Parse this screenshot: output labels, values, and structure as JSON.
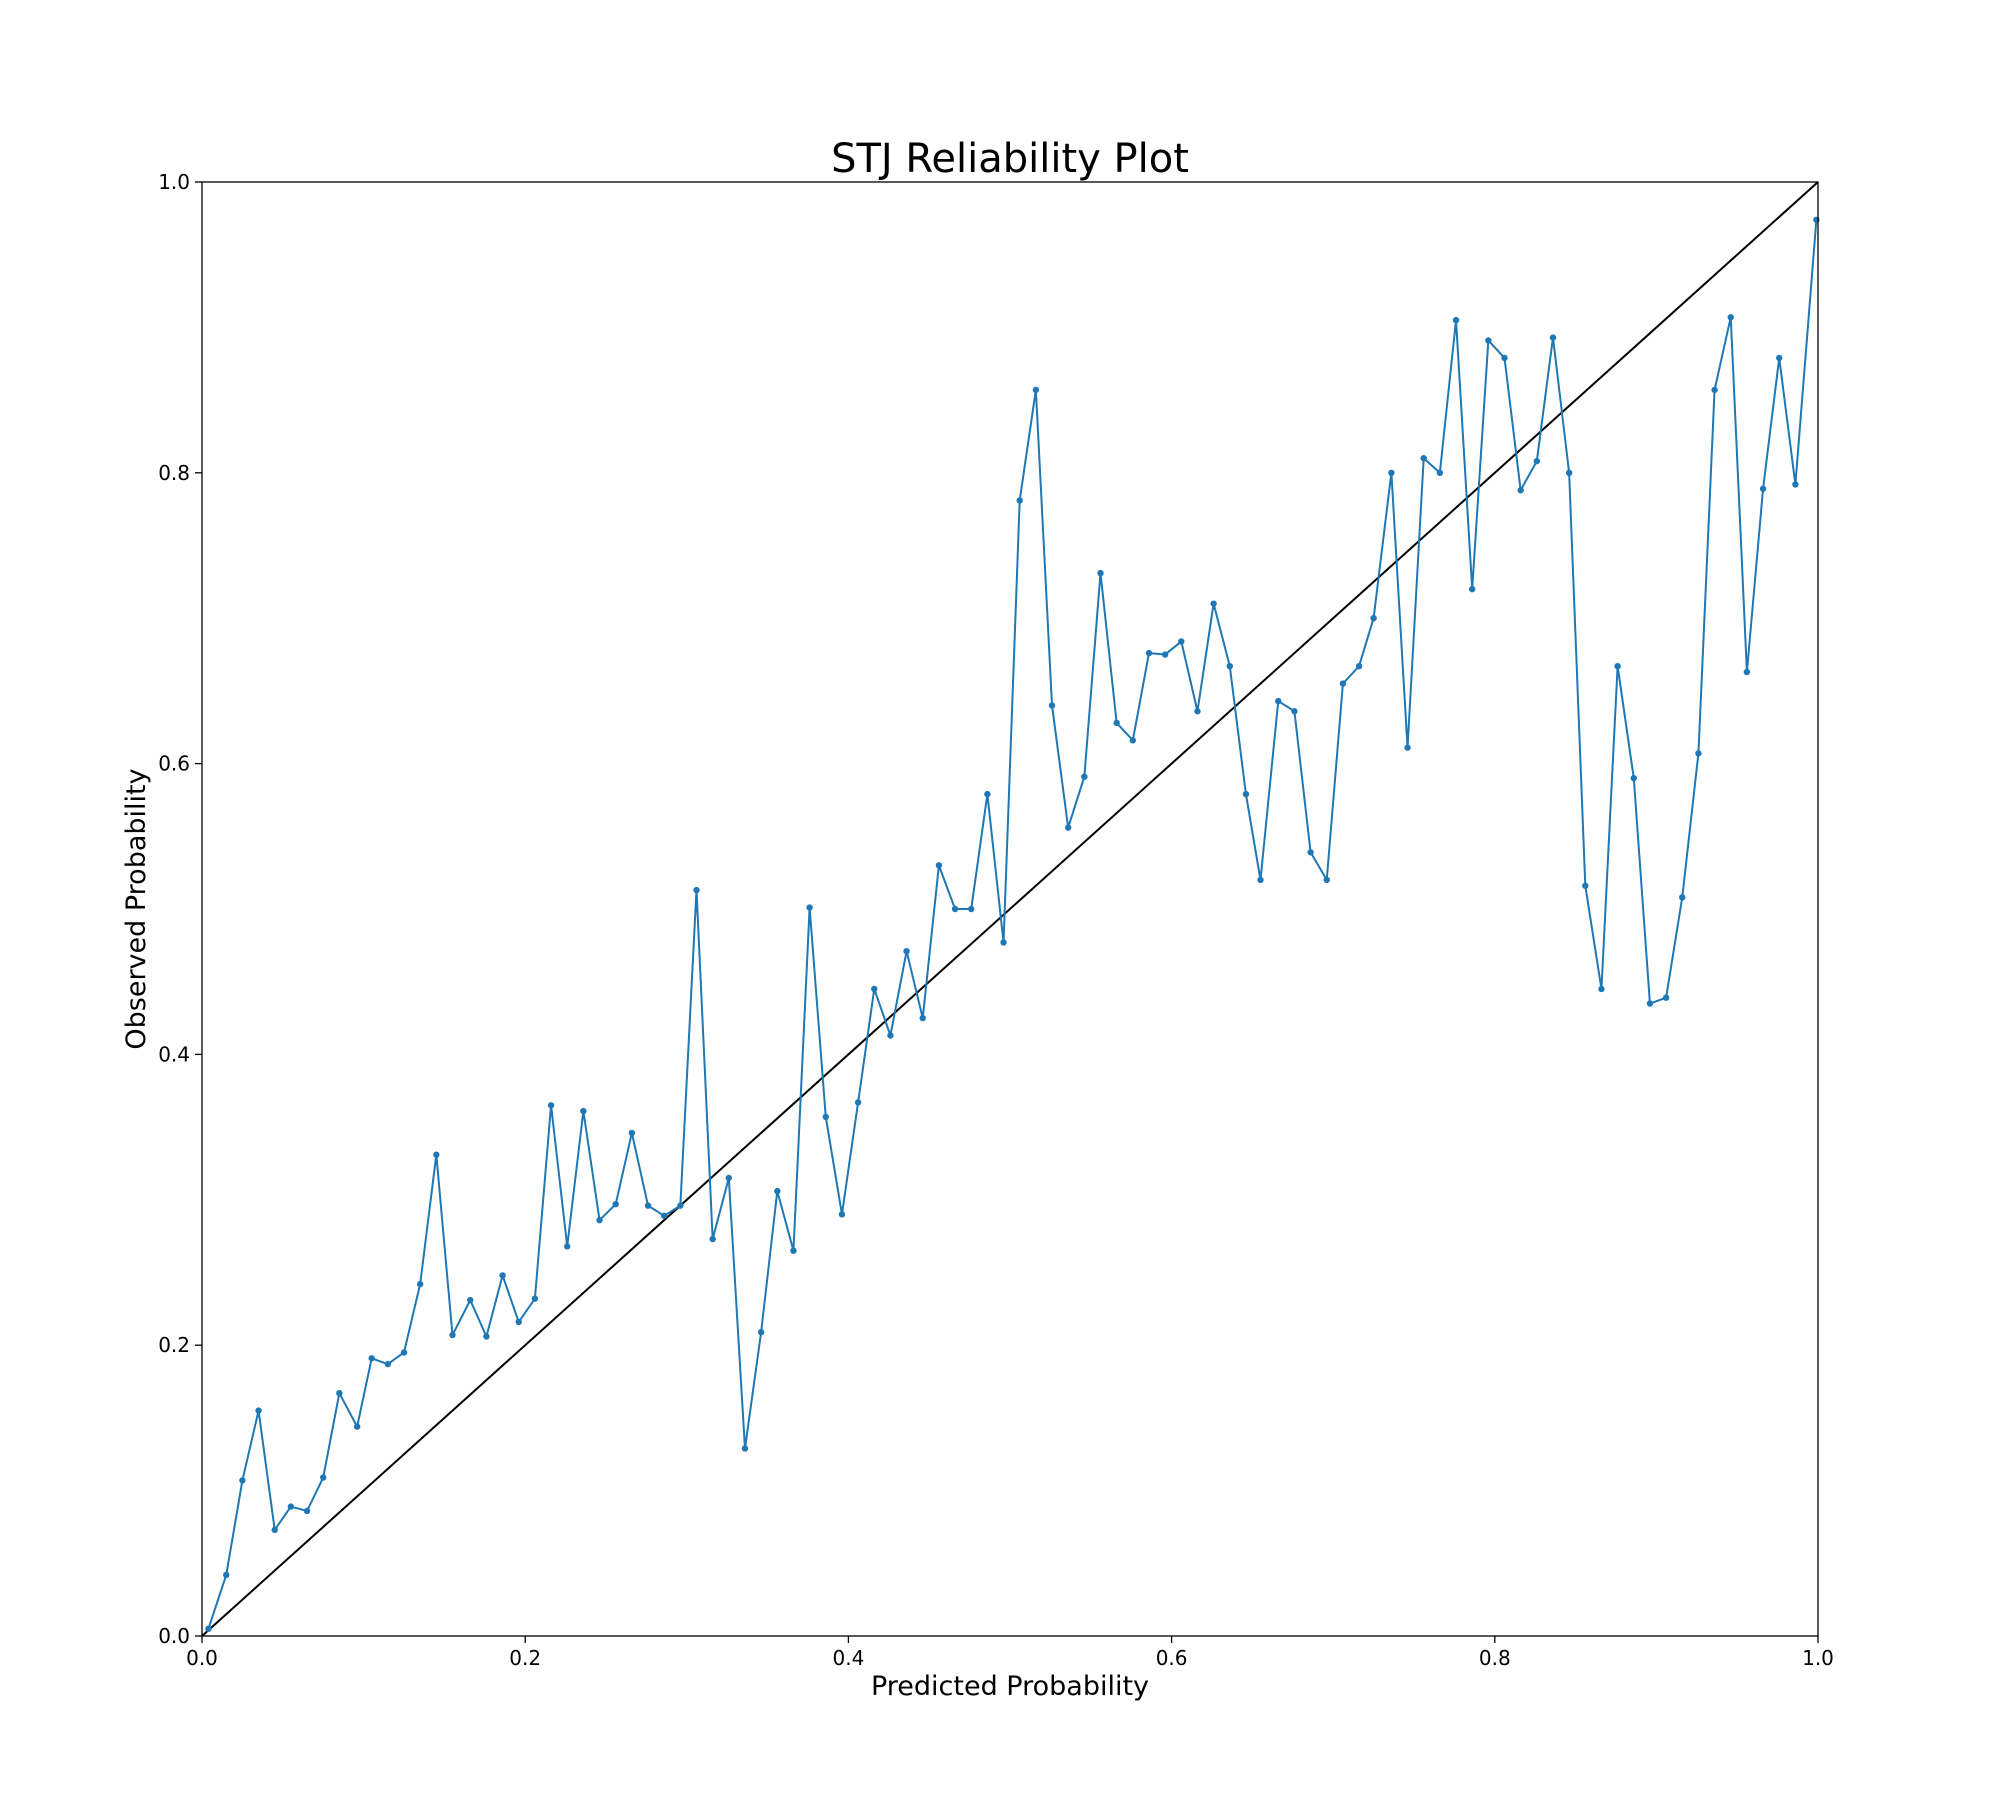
{
  "chart_data": {
    "type": "line",
    "title": "STJ Reliability Plot",
    "xlabel": "Predicted Probability",
    "ylabel": "Observed Probability",
    "xlim": [
      0.0,
      1.0
    ],
    "ylim": [
      0.0,
      1.0
    ],
    "xticks": [
      "0.0",
      "0.2",
      "0.4",
      "0.6",
      "0.8",
      "1.0"
    ],
    "yticks": [
      "0.0",
      "0.2",
      "0.4",
      "0.6",
      "0.8",
      "1.0"
    ],
    "grid": false,
    "legend": "none",
    "colors": {
      "series": "#1f77b4",
      "reference": "#000000"
    },
    "reference_line": {
      "x": [
        0.0,
        1.0
      ],
      "y": [
        0.0,
        1.0
      ]
    },
    "series": [
      {
        "x": [
          0.004,
          0.015,
          0.025,
          0.035,
          0.045,
          0.055,
          0.065,
          0.075,
          0.085,
          0.096,
          0.105,
          0.115,
          0.125,
          0.135,
          0.145,
          0.155,
          0.166,
          0.176,
          0.186,
          0.196,
          0.206,
          0.216,
          0.226,
          0.236,
          0.246,
          0.256,
          0.266,
          0.276,
          0.286,
          0.296,
          0.306,
          0.316,
          0.326,
          0.336,
          0.346,
          0.356,
          0.366,
          0.376,
          0.386,
          0.396,
          0.406,
          0.416,
          0.426,
          0.436,
          0.446,
          0.456,
          0.466,
          0.476,
          0.486,
          0.496,
          0.506,
          0.516,
          0.526,
          0.536,
          0.546,
          0.556,
          0.566,
          0.576,
          0.586,
          0.596,
          0.606,
          0.616,
          0.626,
          0.636,
          0.646,
          0.655,
          0.666,
          0.676,
          0.686,
          0.696,
          0.706,
          0.716,
          0.725,
          0.736,
          0.746,
          0.756,
          0.766,
          0.776,
          0.786,
          0.796,
          0.806,
          0.816,
          0.826,
          0.836,
          0.846,
          0.856,
          0.866,
          0.876,
          0.886,
          0.896,
          0.906,
          0.916,
          0.926,
          0.936,
          0.946,
          0.956,
          0.966,
          0.976,
          0.986,
          0.999
        ],
        "y": [
          0.005,
          0.042,
          0.107,
          0.155,
          0.073,
          0.089,
          0.086,
          0.109,
          0.167,
          0.144,
          0.191,
          0.187,
          0.195,
          0.242,
          0.331,
          0.207,
          0.231,
          0.206,
          0.248,
          0.216,
          0.232,
          0.365,
          0.268,
          0.361,
          0.286,
          0.297,
          0.346,
          0.296,
          0.289,
          0.296,
          0.513,
          0.273,
          0.315,
          0.129,
          0.209,
          0.306,
          0.265,
          0.501,
          0.357,
          0.29,
          0.367,
          0.445,
          0.413,
          0.471,
          0.425,
          0.53,
          0.5,
          0.5,
          0.579,
          0.477,
          0.781,
          0.857,
          0.64,
          0.556,
          0.591,
          0.731,
          0.628,
          0.616,
          0.676,
          0.675,
          0.684,
          0.636,
          0.71,
          0.667,
          0.579,
          0.52,
          0.643,
          0.636,
          0.539,
          0.52,
          0.655,
          0.667,
          0.7,
          0.8,
          0.611,
          0.81,
          0.8,
          0.905,
          0.72,
          0.891,
          0.879,
          0.788,
          0.808,
          0.893,
          0.8,
          0.516,
          0.445,
          0.667,
          0.59,
          0.435,
          0.439,
          0.508,
          0.607,
          0.857,
          0.907,
          0.663,
          0.789,
          0.879,
          0.792,
          0.974
        ]
      }
    ]
  }
}
